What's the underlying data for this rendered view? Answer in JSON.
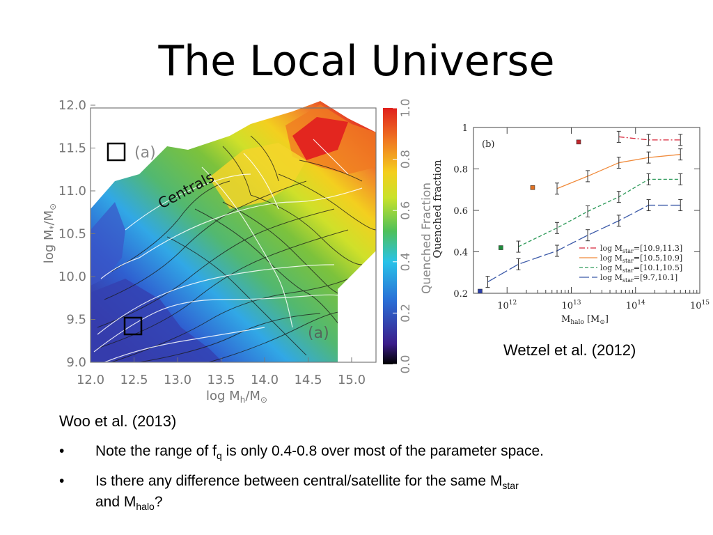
{
  "slide": {
    "title": "The Local Universe",
    "woo_caption": "Woo et al. (2013)",
    "wetzel_caption": "Wetzel et al. (2012)",
    "bullets": [
      {
        "pre": "Note the range of f",
        "sub": "q",
        "post": " is only 0.4-0.8 over most of the parameter space."
      },
      {
        "line1_pre": "Is there any difference between central/satellite for the same M",
        "line1_sub": "star",
        "line2_pre": "and M",
        "line2_sub": "halo",
        "line2_post": "?"
      }
    ],
    "bullet_char": "•"
  },
  "chart_data": [
    {
      "type": "heatmap",
      "xlabel": "log M_h/M_⊙",
      "ylabel": "log M_*/M_⊙",
      "xlim": [
        12.0,
        15.3
      ],
      "ylim": [
        9.0,
        12.0
      ],
      "x_ticks": [
        "12.0",
        "12.5",
        "13.0",
        "13.5",
        "14.0",
        "14.5",
        "15.0"
      ],
      "y_ticks": [
        "9.0",
        "9.5",
        "10.0",
        "10.5",
        "11.0",
        "11.5",
        "12.0"
      ],
      "panel_label": "(a)",
      "annotation": "Centrals",
      "colorbar": {
        "label": "Quenched Fraction",
        "range": [
          0.0,
          1.0
        ],
        "ticks": [
          "0.0",
          "0.2",
          "0.4",
          "0.6",
          "0.8",
          "1.0"
        ],
        "colors": [
          "#000000",
          "#3b1d8a",
          "#2a6fd6",
          "#29c2e8",
          "#4fc05a",
          "#c9e22a",
          "#f4ce1e",
          "#f07a22",
          "#e0201c"
        ]
      }
    },
    {
      "type": "line",
      "panel_label": "(b)",
      "xlabel": "M_halo [M_⊙]",
      "ylabel": "Quenched fraction",
      "xscale": "log",
      "xlim": [
        300000000000.0,
        1000000000000000.0
      ],
      "ylim": [
        0.2,
        1.0
      ],
      "x_ticks": [
        "10^12",
        "10^13",
        "10^14",
        "10^15"
      ],
      "y_ticks": [
        "0.2",
        "0.4",
        "0.6",
        "0.8",
        "1"
      ],
      "series": [
        {
          "name": "log M_star=[10.9,11.3]",
          "color": "#d8263a",
          "dash": "8 3 2 3",
          "x": [
            55000000000000.0,
            160000000000000.0,
            500000000000000.0
          ],
          "y": [
            0.955,
            0.94,
            0.94
          ],
          "central": {
            "x": 13000000000000.0,
            "y": 0.93,
            "color": "#c0262c"
          }
        },
        {
          "name": "log M_star=[10.5,10.9]",
          "color": "#f08a3a",
          "dash": "",
          "x": [
            6000000000000.0,
            18000000000000.0,
            55000000000000.0,
            160000000000000.0,
            500000000000000.0
          ],
          "y": [
            0.705,
            0.765,
            0.83,
            0.855,
            0.87
          ],
          "central": {
            "x": 2500000000000.0,
            "y": 0.71,
            "color": "#e07020"
          }
        },
        {
          "name": "log M_star=[10.1,10.5]",
          "color": "#2e9a5a",
          "dash": "5 3",
          "x": [
            1500000000000.0,
            6000000000000.0,
            18000000000000.0,
            55000000000000.0,
            160000000000000.0,
            500000000000000.0
          ],
          "y": [
            0.425,
            0.515,
            0.595,
            0.665,
            0.75,
            0.75
          ],
          "central": {
            "x": 800000000000.0,
            "y": 0.42,
            "color": "#1e8a3a"
          }
        },
        {
          "name": "log M_star=[9.7,10.1]",
          "color": "#3b59a8",
          "dash": "14 4",
          "x": [
            500000000000.0,
            1500000000000.0,
            6000000000000.0,
            18000000000000.0,
            55000000000000.0,
            160000000000000.0,
            500000000000000.0
          ],
          "y": [
            0.255,
            0.34,
            0.405,
            0.48,
            0.55,
            0.625,
            0.625
          ],
          "central": {
            "x": 380000000000.0,
            "y": 0.21,
            "color": "#2a3ea8"
          }
        }
      ]
    }
  ]
}
